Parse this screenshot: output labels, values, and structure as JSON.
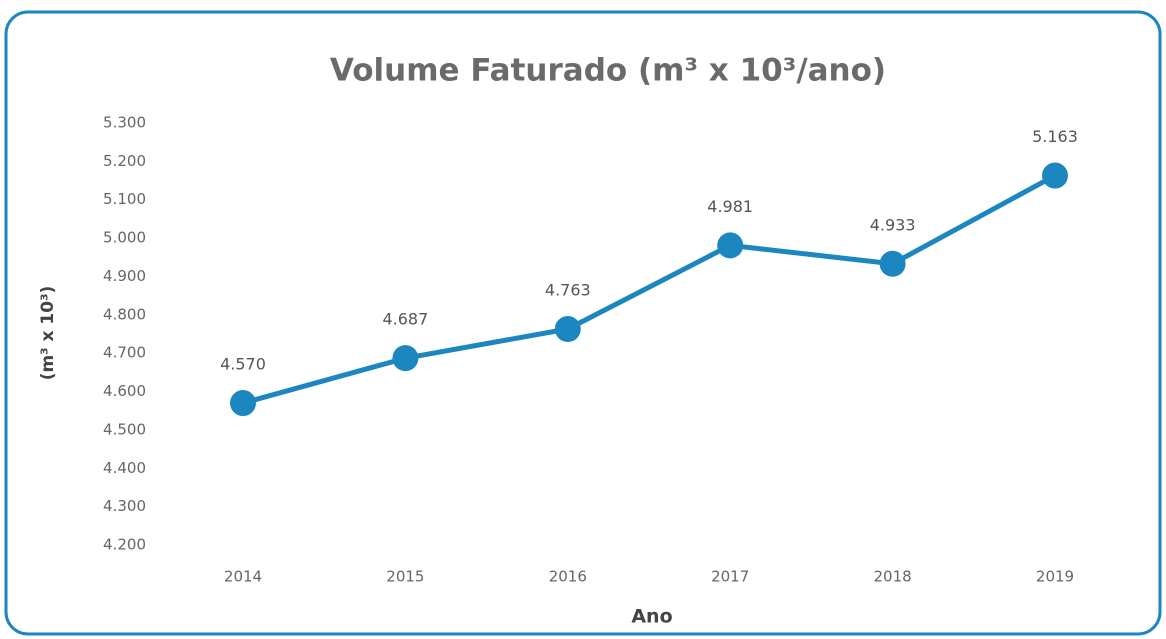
{
  "chart_data": {
    "type": "line",
    "title": "Volume Faturado (m³ x 10³/ano)",
    "y_label": "(m³ x 10³)",
    "x_label": "Ano",
    "categories": [
      "2014",
      "2015",
      "2016",
      "2017",
      "2018",
      "2019"
    ],
    "values": [
      4570,
      4687,
      4763,
      4981,
      4933,
      5163
    ],
    "value_labels": [
      "4.570",
      "4.687",
      "4.763",
      "4.981",
      "4.933",
      "5.163"
    ],
    "color": "#1b86bf",
    "ylim": [
      4200,
      5300
    ],
    "yticks": [
      {
        "value": 4200,
        "label": "4.200"
      },
      {
        "value": 4300,
        "label": "4.300"
      },
      {
        "value": 4400,
        "label": "4.400"
      },
      {
        "value": 4500,
        "label": "4.500"
      },
      {
        "value": 4600,
        "label": "4.600"
      },
      {
        "value": 4700,
        "label": "4.700"
      },
      {
        "value": 4800,
        "label": "4.800"
      },
      {
        "value": 4900,
        "label": "4.900"
      },
      {
        "value": 5000,
        "label": "5.000"
      },
      {
        "value": 5100,
        "label": "5.100"
      },
      {
        "value": 5200,
        "label": "5.200"
      },
      {
        "value": 5300,
        "label": "5.300"
      }
    ],
    "grid": false
  }
}
